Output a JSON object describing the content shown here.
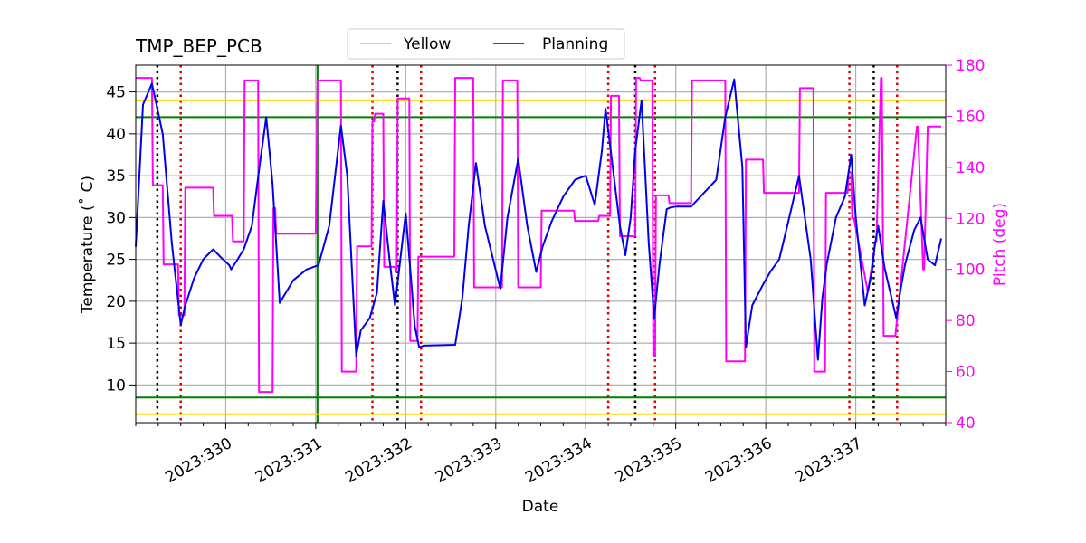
{
  "chart_data": {
    "type": "line",
    "title": "TMP_BEP_PCB",
    "xlabel": "Date",
    "ylabel": "Temperature ($^\\circ$C)",
    "ylabel_display": "Temperature (˚ C)",
    "y2label": "Pitch (deg)",
    "xlim": [
      329.0,
      338.0
    ],
    "ylim": [
      5.5,
      48.2
    ],
    "y2lim": [
      40,
      180
    ],
    "x_ticks": [
      330,
      331,
      332,
      333,
      334,
      335,
      336,
      337
    ],
    "x_tick_labels": [
      "2023:330",
      "2023:331",
      "2023:332",
      "2023:333",
      "2023:334",
      "2023:335",
      "2023:336",
      "2023:337"
    ],
    "y_ticks": [
      10,
      15,
      20,
      25,
      30,
      35,
      40,
      45
    ],
    "y_tick_labels": [
      "10",
      "15",
      "20",
      "25",
      "30",
      "35",
      "40",
      "45"
    ],
    "y2_ticks": [
      40,
      60,
      80,
      100,
      120,
      140,
      160,
      180
    ],
    "y2_tick_labels": [
      "40",
      "60",
      "80",
      "100",
      "120",
      "140",
      "160",
      "180"
    ],
    "grid": true,
    "legend": {
      "placement": "top-center",
      "entries": [
        {
          "label": "Yellow",
          "color": "#ffd700"
        },
        {
          "label": "Planning",
          "color": "#008000"
        }
      ]
    },
    "limit_lines": [
      {
        "name": "yellow-high",
        "y": 44.0,
        "color": "#ffd700"
      },
      {
        "name": "yellow-low",
        "y": 6.5,
        "color": "#ffd700"
      },
      {
        "name": "planning-high",
        "y": 42.0,
        "color": "#008000"
      },
      {
        "name": "planning-low",
        "y": 8.5,
        "color": "#008000"
      }
    ],
    "vertical_markers": [
      {
        "x": 331.02,
        "color": "#008000",
        "style": "solid"
      },
      {
        "x": 329.24,
        "color": "#000000",
        "style": "dotted"
      },
      {
        "x": 331.91,
        "color": "#000000",
        "style": "dotted"
      },
      {
        "x": 334.55,
        "color": "#000000",
        "style": "dotted"
      },
      {
        "x": 337.2,
        "color": "#000000",
        "style": "dotted"
      },
      {
        "x": 329.5,
        "color": "#dd0000",
        "style": "dotted"
      },
      {
        "x": 331.63,
        "color": "#dd0000",
        "style": "dotted"
      },
      {
        "x": 332.17,
        "color": "#dd0000",
        "style": "dotted"
      },
      {
        "x": 334.25,
        "color": "#dd0000",
        "style": "dotted"
      },
      {
        "x": 334.77,
        "color": "#dd0000",
        "style": "dotted"
      },
      {
        "x": 336.93,
        "color": "#dd0000",
        "style": "dotted"
      },
      {
        "x": 337.46,
        "color": "#dd0000",
        "style": "dotted"
      }
    ],
    "series": [
      {
        "name": "TMP_BEP_PCB",
        "axis": "left",
        "color": "#0000ee",
        "x": [
          329.0,
          329.08,
          329.18,
          329.3,
          329.4,
          329.5,
          329.55,
          329.65,
          329.75,
          329.86,
          329.95,
          330.04,
          330.06,
          330.12,
          330.2,
          330.29,
          330.38,
          330.45,
          330.52,
          330.6,
          330.75,
          330.9,
          331.03,
          331.15,
          331.28,
          331.35,
          331.45,
          331.5,
          331.6,
          331.68,
          331.75,
          331.82,
          331.88,
          331.95,
          332.0,
          332.06,
          332.1,
          332.15,
          332.2,
          332.55,
          332.63,
          332.7,
          332.78,
          332.88,
          333.05,
          333.13,
          333.25,
          333.35,
          333.45,
          333.52,
          333.62,
          333.75,
          333.88,
          334.0,
          334.1,
          334.18,
          334.22,
          334.3,
          334.38,
          334.44,
          334.5,
          334.55,
          334.62,
          334.7,
          334.76,
          334.82,
          334.9,
          334.94,
          335.0,
          335.08,
          335.17,
          335.45,
          335.55,
          335.65,
          335.74,
          335.78,
          335.85,
          335.97,
          336.05,
          336.15,
          336.25,
          336.37,
          336.5,
          336.58,
          336.63,
          336.68,
          336.78,
          336.88,
          336.95,
          337.0,
          337.1,
          337.18,
          337.21,
          337.25,
          337.32,
          337.45,
          337.5,
          337.55,
          337.65,
          337.72,
          337.8,
          337.88,
          337.95
        ],
        "y": [
          26.5,
          43.5,
          46.0,
          40.0,
          27.0,
          17.2,
          19.5,
          22.8,
          25.0,
          26.2,
          25.2,
          24.3,
          23.8,
          24.8,
          26.2,
          29.0,
          36.5,
          42.0,
          34.0,
          19.8,
          22.5,
          23.8,
          24.3,
          29.0,
          41.0,
          35.0,
          13.5,
          16.5,
          18.0,
          21.0,
          32.0,
          25.0,
          19.5,
          26.0,
          30.5,
          22.5,
          17.0,
          14.5,
          14.7,
          14.8,
          20.5,
          29.0,
          36.5,
          29.0,
          21.5,
          30.0,
          37.0,
          29.0,
          23.5,
          26.5,
          29.5,
          32.5,
          34.5,
          35.0,
          31.5,
          38.0,
          43.0,
          36.0,
          29.0,
          25.5,
          30.0,
          38.0,
          44.0,
          27.0,
          18.0,
          24.5,
          31.0,
          31.2,
          31.3,
          31.3,
          31.3,
          34.5,
          42.0,
          46.5,
          36.0,
          14.5,
          19.5,
          22.0,
          23.5,
          25.0,
          29.5,
          35.0,
          25.0,
          13.0,
          20.5,
          24.5,
          30.0,
          32.5,
          37.5,
          30.0,
          19.5,
          23.5,
          26.5,
          29.0,
          24.0,
          18.0,
          21.5,
          24.5,
          28.5,
          30.0,
          25.0,
          24.3,
          27.5
        ]
      },
      {
        "name": "Pitch",
        "axis": "right",
        "color": "#ff00ff",
        "x": [
          329.0,
          329.02,
          329.18,
          329.19,
          329.3,
          329.31,
          329.47,
          329.48,
          329.54,
          329.55,
          329.86,
          329.87,
          330.07,
          330.08,
          330.2,
          330.21,
          330.36,
          330.37,
          330.52,
          330.53,
          330.55,
          330.56,
          331.0,
          331.02,
          331.07,
          331.28,
          331.29,
          331.45,
          331.46,
          331.62,
          331.63,
          331.65,
          331.66,
          331.75,
          331.76,
          331.88,
          331.89,
          331.9,
          331.91,
          332.04,
          332.05,
          332.13,
          332.14,
          332.17,
          332.18,
          332.54,
          332.55,
          332.75,
          332.76,
          333.04,
          333.05,
          333.07,
          333.08,
          333.24,
          333.25,
          333.5,
          333.51,
          333.87,
          333.88,
          334.14,
          334.15,
          334.27,
          334.28,
          334.37,
          334.38,
          334.55,
          334.56,
          334.6,
          334.61,
          334.74,
          334.75,
          334.77,
          334.78,
          334.92,
          334.93,
          335.17,
          335.18,
          335.55,
          335.56,
          335.77,
          335.78,
          335.97,
          335.98,
          336.0,
          336.01,
          336.37,
          336.38,
          336.53,
          336.54,
          336.66,
          336.67,
          336.91,
          336.92,
          336.95,
          336.96,
          336.97,
          336.98,
          337.13,
          337.14,
          337.22,
          337.23,
          337.28,
          337.29,
          337.31,
          337.32,
          337.43,
          337.44,
          337.68,
          337.69,
          337.75,
          337.76,
          337.8,
          337.81,
          337.92,
          337.93,
          337.95
        ],
        "y": [
          175,
          175,
          175,
          133,
          133,
          102,
          102,
          82,
          82,
          132,
          132,
          121,
          121,
          111,
          111,
          174,
          174,
          52,
          52,
          124,
          124,
          114,
          114,
          174,
          174,
          174,
          60,
          60,
          109,
          109,
          158,
          158,
          161,
          161,
          101,
          101,
          99,
          99,
          167,
          167,
          72,
          72,
          105,
          105,
          105,
          105,
          175,
          175,
          93,
          93,
          93,
          93,
          174,
          174,
          93,
          93,
          123,
          123,
          119,
          119,
          121,
          121,
          168,
          168,
          113,
          113,
          175,
          175,
          174,
          174,
          66,
          66,
          129,
          129,
          126,
          126,
          174,
          174,
          64,
          64,
          143,
          143,
          130,
          130,
          130,
          130,
          171,
          171,
          60,
          60,
          130,
          130,
          138,
          138,
          120,
          120,
          120,
          92,
          92,
          111,
          111,
          175,
          175,
          74,
          74,
          74,
          74,
          156,
          156,
          100,
          100,
          156,
          156,
          156,
          156,
          156
        ]
      }
    ]
  }
}
